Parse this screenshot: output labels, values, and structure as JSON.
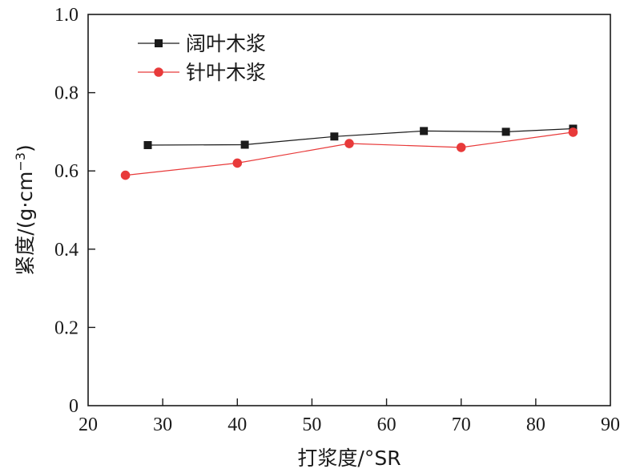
{
  "chart_data": {
    "type": "line",
    "xlabel": "打浆度/°SR",
    "ylabel_main": "紧度/(g·cm",
    "ylabel_sup": "−3",
    "ylabel_close": ")",
    "xlim": [
      20,
      90
    ],
    "ylim": [
      0,
      1.0
    ],
    "x_ticks": [
      20,
      30,
      40,
      50,
      60,
      70,
      80,
      90
    ],
    "y_ticks": [
      0,
      0.2,
      0.4,
      0.6,
      0.8,
      1.0
    ],
    "y_tick_labels": [
      "0",
      "0.2",
      "0.4",
      "0.6",
      "0.8",
      "1.0"
    ],
    "legend_position": "top-left",
    "grid": false,
    "series": [
      {
        "name": "阔叶木浆",
        "marker": "square",
        "color": "#1a1a1a",
        "x": [
          28,
          41,
          53,
          65,
          76,
          85
        ],
        "y": [
          0.666,
          0.667,
          0.688,
          0.702,
          0.7,
          0.708
        ]
      },
      {
        "name": "针叶木浆",
        "marker": "circle",
        "color": "#e83a3a",
        "x": [
          25,
          40,
          55,
          70,
          85
        ],
        "y": [
          0.589,
          0.62,
          0.67,
          0.66,
          0.699
        ]
      }
    ]
  }
}
